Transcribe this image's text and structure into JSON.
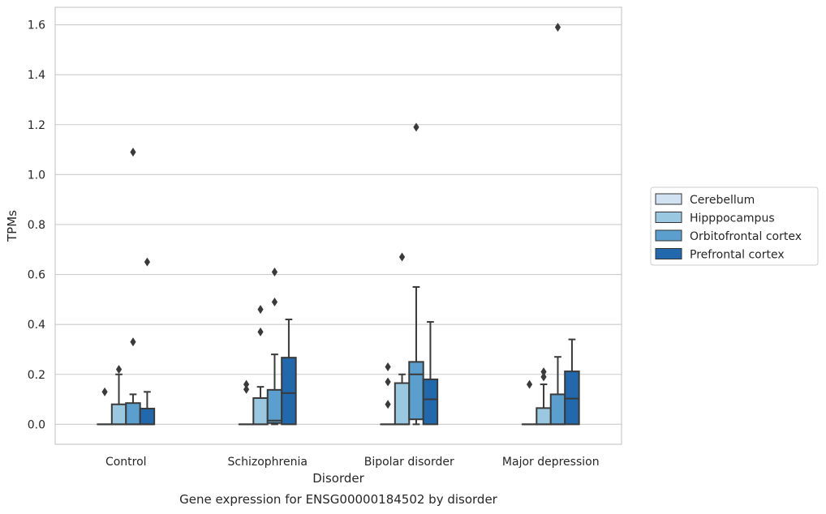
{
  "chart_data": {
    "type": "box",
    "title": "",
    "caption": "Gene expression for ENSG00000184502 by disorder",
    "xlabel": "Disorder",
    "ylabel": "TPMs",
    "ylim": [
      -0.08,
      1.67
    ],
    "yticks": [
      0.0,
      0.2,
      0.4,
      0.6,
      0.8,
      1.0,
      1.2,
      1.4,
      1.6
    ],
    "ytick_labels": [
      "0.0",
      "0.2",
      "0.4",
      "0.6",
      "0.8",
      "1.0",
      "1.2",
      "1.4",
      "1.6"
    ],
    "grid": "horizontal",
    "legend_position": "right",
    "categories": [
      "Control",
      "Schizophrenia",
      "Bipolar disorder",
      "Major depression"
    ],
    "series": [
      {
        "name": "Cerebellum",
        "color": "#d1e2f2",
        "boxes": [
          {
            "q1": 0,
            "median": 0,
            "q3": 0,
            "whisker_low": 0,
            "whisker_high": 0,
            "outliers": [
              0.13
            ]
          },
          {
            "q1": 0,
            "median": 0,
            "q3": 0,
            "whisker_low": 0,
            "whisker_high": 0,
            "outliers": [
              0.14,
              0.16
            ]
          },
          {
            "q1": 0,
            "median": 0,
            "q3": 0,
            "whisker_low": 0,
            "whisker_high": 0,
            "outliers": [
              0.08,
              0.17,
              0.23
            ]
          },
          {
            "q1": 0,
            "median": 0,
            "q3": 0,
            "whisker_low": 0,
            "whisker_high": 0,
            "outliers": [
              0.16
            ]
          }
        ]
      },
      {
        "name": "Hipppocampus",
        "color": "#9ac8e0",
        "boxes": [
          {
            "q1": 0,
            "median": 0,
            "q3": 0.08,
            "whisker_low": 0,
            "whisker_high": 0.2,
            "outliers": [
              0.22
            ]
          },
          {
            "q1": 0,
            "median": 0,
            "q3": 0.105,
            "whisker_low": 0,
            "whisker_high": 0.15,
            "outliers": [
              0.37,
              0.46
            ]
          },
          {
            "q1": 0,
            "median": 0,
            "q3": 0.165,
            "whisker_low": 0,
            "whisker_high": 0.2,
            "outliers": [
              0.67
            ]
          },
          {
            "q1": 0,
            "median": 0,
            "q3": 0.065,
            "whisker_low": 0,
            "whisker_high": 0.16,
            "outliers": [
              0.19,
              0.21
            ]
          }
        ]
      },
      {
        "name": "Orbitofrontal cortex",
        "color": "#5a9fcd",
        "boxes": [
          {
            "q1": 0,
            "median": 0,
            "q3": 0.085,
            "whisker_low": 0,
            "whisker_high": 0.12,
            "outliers": [
              0.33,
              1.09
            ]
          },
          {
            "q1": 0.005,
            "median": 0.015,
            "q3": 0.138,
            "whisker_low": 0,
            "whisker_high": 0.28,
            "outliers": [
              0.49,
              0.61
            ]
          },
          {
            "q1": 0.02,
            "median": 0.2,
            "q3": 0.25,
            "whisker_low": 0,
            "whisker_high": 0.55,
            "outliers": [
              1.19
            ]
          },
          {
            "q1": 0,
            "median": 0,
            "q3": 0.12,
            "whisker_low": 0,
            "whisker_high": 0.27,
            "outliers": [
              1.59
            ]
          }
        ]
      },
      {
        "name": "Prefrontal cortex",
        "color": "#2268ac",
        "boxes": [
          {
            "q1": 0,
            "median": 0,
            "q3": 0.063,
            "whisker_low": 0,
            "whisker_high": 0.13,
            "outliers": [
              0.65
            ]
          },
          {
            "q1": 0,
            "median": 0.125,
            "q3": 0.267,
            "whisker_low": 0,
            "whisker_high": 0.42,
            "outliers": []
          },
          {
            "q1": 0,
            "median": 0.1,
            "q3": 0.18,
            "whisker_low": 0,
            "whisker_high": 0.41,
            "outliers": []
          },
          {
            "q1": 0,
            "median": 0.103,
            "q3": 0.212,
            "whisker_low": 0,
            "whisker_high": 0.34,
            "outliers": []
          }
        ]
      }
    ]
  }
}
